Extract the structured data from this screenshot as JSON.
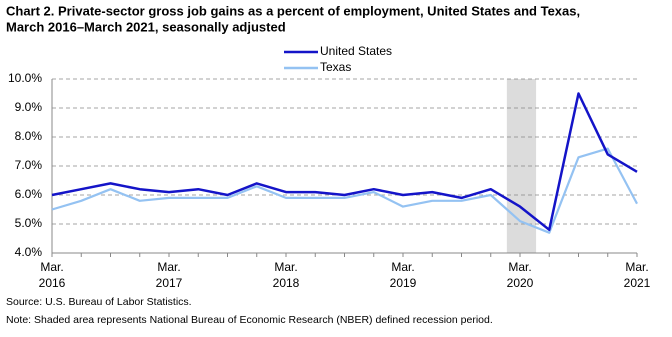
{
  "chart_data": {
    "type": "line",
    "title": "Chart 2. Private-sector  gross  job gains as a percent of employment, United States and Texas, March 2016–March 2021, seasonally adjusted",
    "categories": [
      "Mar. 2016",
      null,
      null,
      null,
      "Mar. 2017",
      null,
      null,
      null,
      "Mar. 2018",
      null,
      null,
      null,
      "Mar. 2019",
      null,
      null,
      null,
      "Mar. 2020",
      null,
      null,
      null,
      "Mar. 2021"
    ],
    "series": [
      {
        "name": "United States",
        "color": "#1414c8",
        "values": [
          6.0,
          6.2,
          6.4,
          6.2,
          6.1,
          6.2,
          6.0,
          6.4,
          6.1,
          6.1,
          6.0,
          6.2,
          6.0,
          6.1,
          5.9,
          6.2,
          5.6,
          4.8,
          9.5,
          7.4,
          6.8
        ]
      },
      {
        "name": "Texas",
        "color": "#94c2f2",
        "values": [
          5.5,
          5.8,
          6.2,
          5.8,
          5.9,
          5.9,
          5.9,
          6.3,
          5.9,
          5.9,
          5.9,
          6.1,
          5.6,
          5.8,
          5.8,
          6.0,
          5.1,
          4.7,
          7.3,
          7.6,
          5.7
        ]
      }
    ],
    "ylim": [
      4,
      10
    ],
    "yticks": [
      {
        "value": 4,
        "label": "4.0%"
      },
      {
        "value": 5,
        "label": "5.0%"
      },
      {
        "value": 6,
        "label": "6.0%"
      },
      {
        "value": 7,
        "label": "7.0%"
      },
      {
        "value": 8,
        "label": "8.0%"
      },
      {
        "value": 9,
        "label": "9.0%"
      },
      {
        "value": 10,
        "label": "10.0%"
      }
    ],
    "grid": true,
    "legend": "top",
    "notes": [
      "Source: U.S. Bureau of Labor Statistics.",
      "Note: Shaded area represents National Bureau of Economic Research (NBER) defined recession period."
    ]
  }
}
